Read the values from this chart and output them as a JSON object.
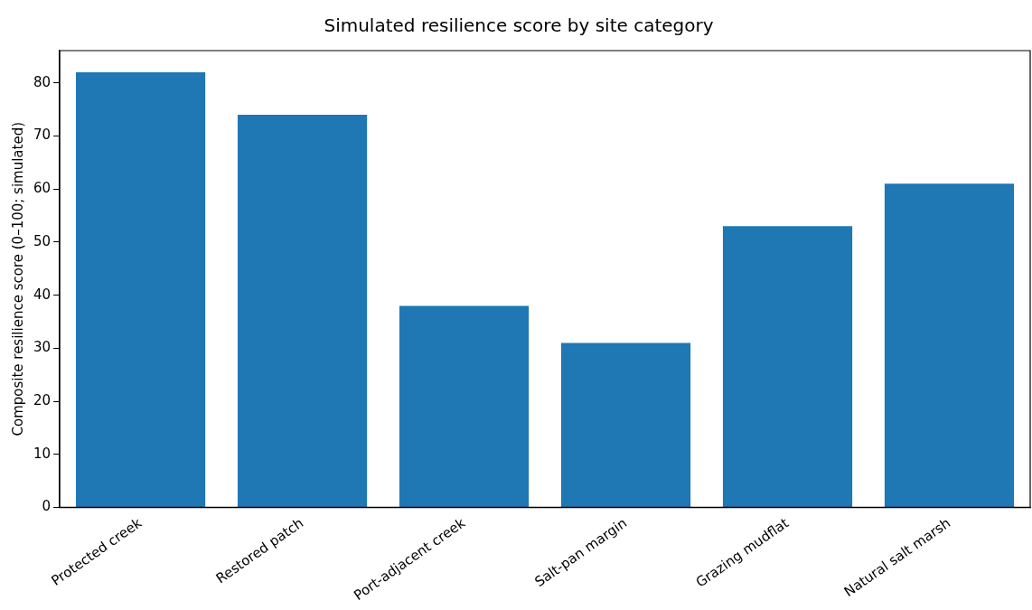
{
  "chart_data": {
    "type": "bar",
    "title": "Simulated resilience score by site category",
    "ylabel": "Composite resilience score (0–100; simulated)",
    "categories": [
      "Protected creek",
      "Restored patch",
      "Port-adjacent creek",
      "Salt-pan margin",
      "Grazing mudflat",
      "Natural salt marsh"
    ],
    "values": [
      82,
      74,
      38,
      31,
      53,
      61
    ],
    "color": "#1f77b4",
    "ylim": [
      0,
      86.1
    ],
    "yticks": [
      0,
      10,
      20,
      30,
      40,
      50,
      60,
      70,
      80
    ],
    "grid": false,
    "legend": false
  }
}
